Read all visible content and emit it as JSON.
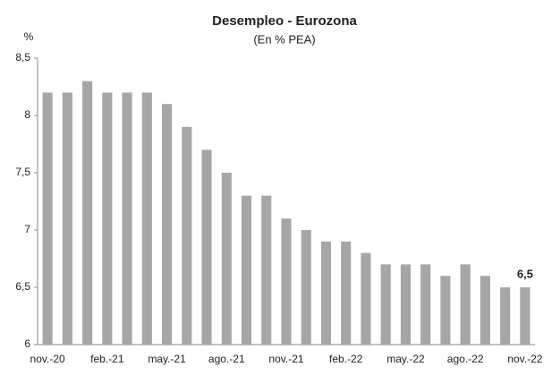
{
  "chart_data": {
    "type": "bar",
    "title": "Desempleo - Eurozona",
    "subtitle": "(En % PEA)",
    "y_label": "%",
    "categories": [
      "nov.-20",
      null,
      null,
      "feb.-21",
      null,
      null,
      "may.-21",
      null,
      null,
      "ago.-21",
      null,
      null,
      "nov.-21",
      null,
      null,
      "feb.-22",
      null,
      null,
      "may.-22",
      null,
      null,
      "ago.-22",
      null,
      null,
      "nov.-22"
    ],
    "values": [
      8.2,
      8.2,
      8.3,
      8.2,
      8.2,
      8.2,
      8.1,
      7.9,
      7.7,
      7.5,
      7.3,
      7.3,
      7.1,
      7.0,
      6.9,
      6.9,
      6.8,
      6.7,
      6.7,
      6.7,
      6.6,
      6.7,
      6.6,
      6.5,
      6.5
    ],
    "value_labels": [
      null,
      null,
      null,
      null,
      null,
      null,
      null,
      null,
      null,
      null,
      null,
      null,
      null,
      null,
      null,
      null,
      null,
      null,
      null,
      null,
      null,
      null,
      null,
      null,
      "6,5"
    ],
    "color": "#a6a6a6",
    "ylim": [
      6,
      8.5
    ],
    "yticks": [
      6,
      {
        "value": 6.5,
        "label": "6,5"
      },
      7,
      {
        "value": 7.5,
        "label": "7,5"
      },
      8,
      {
        "value": 8.5,
        "label": "8,5"
      }
    ],
    "grid": false
  }
}
